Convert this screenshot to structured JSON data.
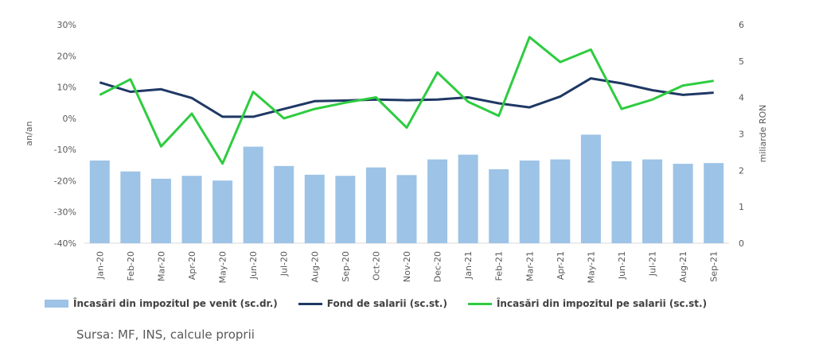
{
  "chart_data": {
    "type": "bar",
    "categories": [
      "Jan-20",
      "Feb-20",
      "Mar-20",
      "Apr-20",
      "May-20",
      "Jun-20",
      "Jul-20",
      "Aug-20",
      "Sep-20",
      "Oct-20",
      "Nov-20",
      "Dec-20",
      "Jan-21",
      "Feb-21",
      "Mar-21",
      "Apr-21",
      "May-21",
      "Jun-21",
      "Jul-21",
      "Aug-21",
      "Sep-21"
    ],
    "series": [
      {
        "name": "Încasări din impozitul pe venit (sc.dr.)",
        "type": "bar",
        "axis": "right",
        "color": "#9dc3e6",
        "values": [
          2.27,
          1.97,
          1.77,
          1.85,
          1.72,
          2.65,
          2.12,
          1.88,
          1.85,
          2.08,
          1.87,
          2.3,
          2.43,
          2.03,
          2.27,
          2.3,
          2.98,
          2.25,
          2.3,
          2.18,
          2.2
        ]
      },
      {
        "name": "Fond de salarii (sc.st.)",
        "type": "line",
        "axis": "left",
        "color": "#1f3864",
        "values": [
          11.5,
          8.5,
          9.3,
          6.5,
          0.5,
          0.5,
          3.0,
          5.5,
          5.7,
          6.0,
          5.8,
          6.0,
          6.7,
          4.8,
          3.5,
          7.0,
          12.8,
          11.2,
          9.0,
          7.5,
          8.2
        ]
      },
      {
        "name": "Încasări din impozitul pe salarii (sc.st.)",
        "type": "line",
        "axis": "left",
        "color": "#2ecc40",
        "values": [
          7.5,
          12.5,
          -9.0,
          1.5,
          -14.5,
          8.5,
          0.0,
          3.0,
          5.0,
          6.7,
          -3.0,
          14.7,
          5.3,
          0.8,
          26.0,
          18.0,
          22.0,
          3.0,
          6.0,
          10.5,
          12.0
        ]
      }
    ],
    "y_left": {
      "label": "an/an",
      "ticks": [
        "30%",
        "20%",
        "10%",
        "0%",
        "-10%",
        "-20%",
        "-30%",
        "-40%"
      ],
      "min": -40,
      "max": 30
    },
    "y_right": {
      "label": "miliarde RON",
      "ticks": [
        "6",
        "5",
        "4",
        "3",
        "2",
        "1",
        "0"
      ],
      "min": 0,
      "max": 6
    },
    "grid": false,
    "legend_position": "bottom"
  },
  "legend": {
    "bar_label": "Încasări din impozitul pe venit (sc.dr.)",
    "line1_label": "Fond de salarii (sc.st.)",
    "line2_label": "Încasări din impozitul pe salarii (sc.st.)"
  },
  "source": "Sursa: MF, INS, calcule proprii"
}
